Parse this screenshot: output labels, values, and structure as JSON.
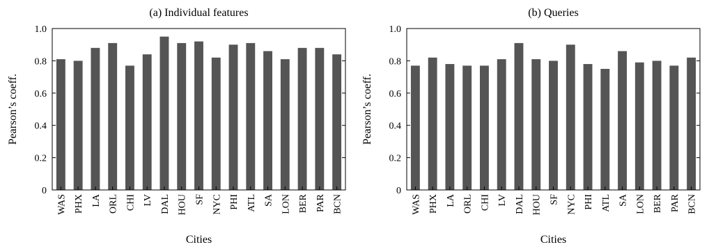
{
  "chart_data": [
    {
      "type": "bar",
      "title": "(a) Individual features",
      "xlabel": "Cities",
      "ylabel": "Pearson’s coeff.",
      "ylim": [
        0,
        1.0
      ],
      "yticks": [
        "0",
        "0.2",
        "0.4",
        "0.6",
        "0.8",
        "1.0"
      ],
      "categories": [
        "WAS",
        "PHX",
        "LA",
        "ORL",
        "CHI",
        "LV",
        "DAL",
        "HOU",
        "SF",
        "NYC",
        "PHI",
        "ATL",
        "SA",
        "LON",
        "BER",
        "PAR",
        "BCN"
      ],
      "values": [
        0.81,
        0.8,
        0.88,
        0.91,
        0.77,
        0.84,
        0.95,
        0.91,
        0.92,
        0.82,
        0.9,
        0.91,
        0.86,
        0.81,
        0.88,
        0.88,
        0.84
      ],
      "bar_color": "#555555",
      "grid": false
    },
    {
      "type": "bar",
      "title": "(b) Queries",
      "xlabel": "Cities",
      "ylabel": "Pearson’s coeff.",
      "ylim": [
        0,
        1.0
      ],
      "yticks": [
        "0",
        "0.2",
        "0.4",
        "0.6",
        "0.8",
        "1.0"
      ],
      "categories": [
        "WAS",
        "PHX",
        "LA",
        "ORL",
        "CHI",
        "LV",
        "DAL",
        "HOU",
        "SF",
        "NYC",
        "PHI",
        "ATL",
        "SA",
        "LON",
        "BER",
        "PAR",
        "BCN"
      ],
      "values": [
        0.77,
        0.82,
        0.78,
        0.77,
        0.77,
        0.81,
        0.91,
        0.81,
        0.8,
        0.9,
        0.78,
        0.75,
        0.86,
        0.79,
        0.8,
        0.77,
        0.82
      ],
      "bar_color": "#555555",
      "grid": false
    }
  ]
}
